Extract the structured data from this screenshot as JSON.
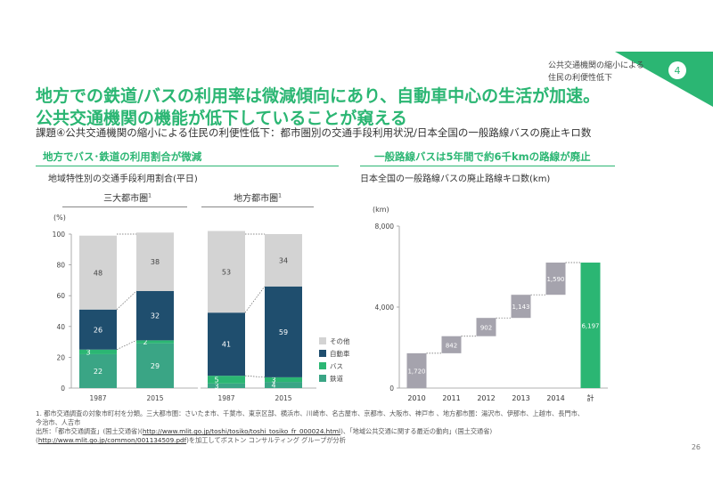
{
  "header": {
    "tag_number": "4",
    "note_line1": "公共交通機関の縮小による",
    "note_line2": "住民の利便性低下"
  },
  "title_line1": "地方での鉄道/バスの利用率は微減傾向にあり、自動車中心の生活が加速。",
  "title_line2": "公共交通機関の機能が低下していることが窺える",
  "subtitle": "課題④公共交通機関の縮小による住民の利便性低下：都市圏別の交通手段利用状況/日本全国の一般路線バスの廃止キロ数",
  "left_section": {
    "heading": "地方でバス･鉄道の利用割合が微減",
    "subheading": "地域特性別の交通手段利用割合(平日)",
    "panel1_title": "三大都市圏",
    "panel1_sup": "1",
    "panel2_title": "地方都市圏",
    "panel2_sup": "1"
  },
  "right_section": {
    "heading": "一般路線バスは5年間で約6千kmの路線が廃止",
    "subheading": "日本全国の一般路線バスの廃止路線キロ数(km)"
  },
  "colors": {
    "accent": "#2bb673",
    "other": "#d3d3d3",
    "car": "#1f4e6e",
    "bus": "#2bb673",
    "rail": "#3aa585",
    "waterfall": "#a5a3ad",
    "total": "#2bb673"
  },
  "chart_data": [
    {
      "type": "bar",
      "stacked": true,
      "title": "三大都市圏",
      "ylabel": "(%)",
      "ylim": [
        0,
        100
      ],
      "yticks": [
        0,
        20,
        40,
        60,
        80,
        100
      ],
      "categories": [
        "1987",
        "2015"
      ],
      "series": [
        {
          "name": "鉄道",
          "values": [
            22,
            29
          ]
        },
        {
          "name": "バス",
          "values": [
            3,
            2
          ]
        },
        {
          "name": "自動車",
          "values": [
            26,
            32
          ]
        },
        {
          "name": "その他",
          "values": [
            48,
            38
          ]
        }
      ]
    },
    {
      "type": "bar",
      "stacked": true,
      "title": "地方都市圏",
      "ylim": [
        0,
        100
      ],
      "categories": [
        "1987",
        "2015"
      ],
      "series": [
        {
          "name": "鉄道",
          "values": [
            3,
            4
          ]
        },
        {
          "name": "バス",
          "values": [
            5,
            3
          ]
        },
        {
          "name": "自動車",
          "values": [
            41,
            59
          ]
        },
        {
          "name": "その他",
          "values": [
            53,
            34
          ]
        }
      ]
    },
    {
      "type": "bar",
      "waterfall": true,
      "ylabel": "(km)",
      "ylim": [
        0,
        8000
      ],
      "yticks": [
        0,
        4000,
        8000
      ],
      "ytick_labels": [
        "0",
        "4,000",
        "8,000"
      ],
      "categories": [
        "2010",
        "2011",
        "2012",
        "2013",
        "2014",
        "計"
      ],
      "values": [
        1720,
        842,
        902,
        1143,
        1590,
        6197
      ],
      "value_labels": [
        "1,720",
        "842",
        "902",
        "1,143",
        "1,590",
        "6,197"
      ]
    }
  ],
  "legend": [
    "その他",
    "自動車",
    "バス",
    "鉄道"
  ],
  "footnotes": {
    "line1": "1. 都市交通調査の対象市町村を分類。三大都市圏：さいたま市、千葉市、東京区部、横浜市、川崎市、名古屋市、京都市、大阪市、神戸市 、地方都市圏：湯沢市、伊那市、上越市、長門市、",
    "line2": "今治市、人吉市",
    "line3_pre": "出所：「都市交通調査」(国土交通省)(",
    "line3_link": "http://www.mlit.go.jp/toshi/tosiko/toshi_tosiko_fr_000024.html",
    "line3_post": ")、「地域公共交通に関する最近の動向」(国土交通省)",
    "line4_link": "http://www.mlit.go.jp/common/001134509.pdf",
    "line4_post": ")を加工してボストン コンサルティング グループが分析"
  },
  "page_number": "26"
}
